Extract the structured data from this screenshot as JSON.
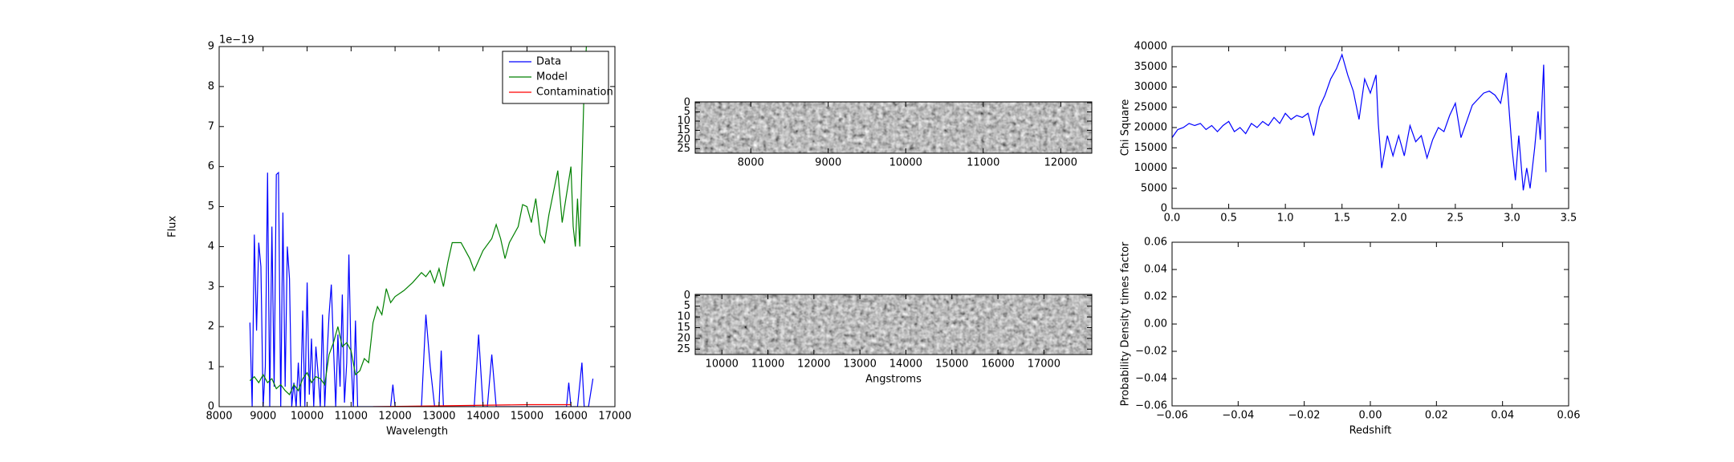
{
  "chart_data": [
    {
      "type": "line",
      "xlabel": "Wavelength",
      "ylabel": "Flux",
      "y_offset_label": "1e−19",
      "xlim": [
        8000,
        17000
      ],
      "xticks": [
        8000,
        9000,
        10000,
        11000,
        12000,
        13000,
        14000,
        15000,
        16000,
        17000
      ],
      "ylim": [
        0,
        9
      ],
      "yticks": [
        0,
        1,
        2,
        3,
        4,
        5,
        6,
        7,
        8,
        9
      ],
      "legend": "upper right",
      "series": [
        {
          "name": "Data",
          "color": "#0000ff",
          "x": [
            8700,
            8750,
            8800,
            8850,
            8900,
            8950,
            9000,
            9050,
            9100,
            9150,
            9200,
            9250,
            9300,
            9350,
            9400,
            9450,
            9500,
            9550,
            9600,
            9650,
            9700,
            9750,
            9800,
            9850,
            9900,
            9950,
            10000,
            10050,
            10100,
            10150,
            10200,
            10250,
            10300,
            10350,
            10400,
            10450,
            10500,
            10550,
            10600,
            10650,
            10700,
            10750,
            10800,
            10850,
            10900,
            10950,
            11000,
            11050,
            11100,
            11150,
            11900,
            11950,
            12000,
            12600,
            12700,
            12800,
            12900,
            13000,
            13050,
            13100,
            13800,
            13900,
            14000,
            14100,
            14200,
            14300,
            15900,
            15950,
            16000,
            16150,
            16250,
            16300,
            16400,
            16500
          ],
          "values": [
            2.1,
            0,
            4.3,
            1.9,
            4.1,
            3.5,
            0,
            1.0,
            5.85,
            0,
            4.5,
            0.5,
            5.8,
            5.85,
            0,
            4.85,
            0.5,
            4.0,
            3.2,
            0,
            0.6,
            0,
            1.1,
            0,
            2.4,
            0,
            3.1,
            0.3,
            1.7,
            0,
            1.5,
            0.8,
            0,
            2.3,
            0,
            1.2,
            2.3,
            3.05,
            1.5,
            0,
            1.8,
            0.5,
            2.8,
            0.1,
            1.1,
            3.8,
            1.2,
            0,
            2.15,
            0,
            0,
            0.55,
            0,
            0,
            2.3,
            1.0,
            0,
            0,
            1.4,
            0,
            0,
            1.8,
            0,
            0,
            1.3,
            0,
            0,
            0.6,
            0,
            0,
            1.1,
            0,
            0,
            0.7
          ]
        },
        {
          "name": "Model",
          "color": "#008000",
          "x": [
            8700,
            8800,
            8900,
            9000,
            9100,
            9200,
            9300,
            9400,
            9500,
            9600,
            9700,
            9800,
            9900,
            10000,
            10100,
            10200,
            10300,
            10400,
            10500,
            10600,
            10700,
            10800,
            10900,
            11000,
            11100,
            11200,
            11300,
            11400,
            11500,
            11600,
            11700,
            11800,
            11900,
            12000,
            12200,
            12400,
            12600,
            12700,
            12800,
            12900,
            13000,
            13100,
            13200,
            13300,
            13500,
            13700,
            13800,
            14000,
            14200,
            14300,
            14400,
            14500,
            14600,
            14800,
            14900,
            15000,
            15100,
            15200,
            15300,
            15400,
            15500,
            15700,
            15800,
            15900,
            16000,
            16050,
            16100,
            16150,
            16200,
            16250,
            16300,
            16350
          ],
          "values": [
            0.65,
            0.75,
            0.6,
            0.8,
            0.6,
            0.7,
            0.45,
            0.55,
            0.4,
            0.3,
            0.55,
            0.4,
            0.7,
            0.85,
            0.6,
            0.75,
            0.7,
            0.55,
            1.3,
            1.6,
            2.0,
            1.5,
            1.6,
            1.4,
            0.8,
            0.9,
            1.2,
            1.1,
            2.1,
            2.5,
            2.3,
            2.95,
            2.6,
            2.75,
            2.9,
            3.1,
            3.35,
            3.25,
            3.4,
            3.1,
            3.45,
            3.0,
            3.6,
            4.1,
            4.1,
            3.7,
            3.4,
            3.9,
            4.2,
            4.55,
            4.2,
            3.7,
            4.1,
            4.5,
            5.05,
            5.0,
            4.6,
            5.2,
            4.3,
            4.1,
            4.8,
            5.9,
            4.6,
            5.3,
            6.0,
            4.5,
            4.0,
            5.2,
            4.0,
            6.0,
            8.0,
            9.0
          ]
        },
        {
          "name": "Contamination",
          "color": "#ff0000",
          "x": [
            11500,
            13000,
            15000,
            16000
          ],
          "values": [
            0,
            0.02,
            0.05,
            0.05
          ]
        }
      ]
    },
    {
      "type": "image",
      "xlim": [
        7283,
        12401
      ],
      "xticks": [
        8000,
        9000,
        10000,
        11000,
        12000
      ],
      "ylim": [
        -0.5,
        27.5
      ],
      "y_inverted": true,
      "yticks": [
        0,
        5,
        10,
        15,
        20,
        25
      ]
    },
    {
      "type": "image",
      "xlabel": "Angstroms",
      "xlim": [
        9420,
        18040
      ],
      "xticks": [
        10000,
        11000,
        12000,
        13000,
        14000,
        15000,
        16000,
        17000
      ],
      "ylim": [
        -0.5,
        27.5
      ],
      "y_inverted": true,
      "yticks": [
        0,
        5,
        10,
        15,
        20,
        25
      ]
    },
    {
      "type": "line",
      "ylabel": "Chi Square",
      "xlim": [
        0,
        3.5
      ],
      "xticks": [
        {
          "value": 0,
          "label": "0.0"
        },
        0.5,
        {
          "value": 1,
          "label": "1.0"
        },
        1.5,
        {
          "value": 2,
          "label": "2.0"
        },
        2.5,
        {
          "value": 3,
          "label": "3.0"
        },
        3.5
      ],
      "ylim": [
        0,
        40000
      ],
      "yticks": [
        0,
        5000,
        10000,
        15000,
        20000,
        25000,
        30000,
        35000,
        40000
      ],
      "series": [
        {
          "color": "#0000ff",
          "x": [
            0,
            0.05,
            0.1,
            0.15,
            0.2,
            0.25,
            0.3,
            0.35,
            0.4,
            0.45,
            0.5,
            0.55,
            0.6,
            0.65,
            0.7,
            0.75,
            0.8,
            0.85,
            0.9,
            0.95,
            1.0,
            1.05,
            1.1,
            1.15,
            1.2,
            1.25,
            1.3,
            1.35,
            1.4,
            1.45,
            1.5,
            1.55,
            1.6,
            1.65,
            1.7,
            1.75,
            1.8,
            1.82,
            1.85,
            1.9,
            1.95,
            2.0,
            2.05,
            2.1,
            2.15,
            2.2,
            2.25,
            2.3,
            2.35,
            2.4,
            2.45,
            2.5,
            2.55,
            2.6,
            2.65,
            2.7,
            2.75,
            2.8,
            2.85,
            2.9,
            2.95,
            3.0,
            3.03,
            3.06,
            3.1,
            3.13,
            3.16,
            3.2,
            3.23,
            3.25,
            3.28,
            3.3
          ],
          "values": [
            17500,
            19500,
            20000,
            21000,
            20500,
            21000,
            19500,
            20500,
            19000,
            20500,
            21500,
            19000,
            20000,
            18500,
            21000,
            20000,
            21500,
            20500,
            22500,
            21000,
            23500,
            22000,
            23000,
            22500,
            23500,
            18000,
            25000,
            28000,
            32000,
            34500,
            38000,
            33000,
            29000,
            22000,
            32000,
            28500,
            33000,
            21000,
            10000,
            18000,
            13000,
            18000,
            13000,
            20500,
            16500,
            18000,
            12500,
            17000,
            20000,
            19000,
            23000,
            26000,
            17500,
            21500,
            25500,
            27000,
            28500,
            29000,
            28000,
            26000,
            33500,
            15000,
            7000,
            18000,
            4500,
            10000,
            5000,
            15000,
            24000,
            17000,
            35500,
            9000
          ]
        }
      ]
    },
    {
      "type": "line",
      "xlabel": "Redshift",
      "ylabel": "Probability Density times factor",
      "xlim": [
        -0.06,
        0.06
      ],
      "xticks": [
        {
          "value": -0.06,
          "label": "−0.06"
        },
        {
          "value": -0.04,
          "label": "−0.04"
        },
        {
          "value": -0.02,
          "label": "−0.02"
        },
        {
          "value": 0,
          "label": "0.00"
        },
        0.02,
        0.04,
        0.06
      ],
      "ylim": [
        -0.06,
        0.06
      ],
      "yticks": [
        {
          "value": -0.06,
          "label": "−0.06"
        },
        {
          "value": -0.04,
          "label": "−0.04"
        },
        {
          "value": -0.02,
          "label": "−0.02"
        },
        {
          "value": 0,
          "label": "0.00"
        },
        0.02,
        0.04,
        0.06
      ],
      "series": []
    }
  ]
}
